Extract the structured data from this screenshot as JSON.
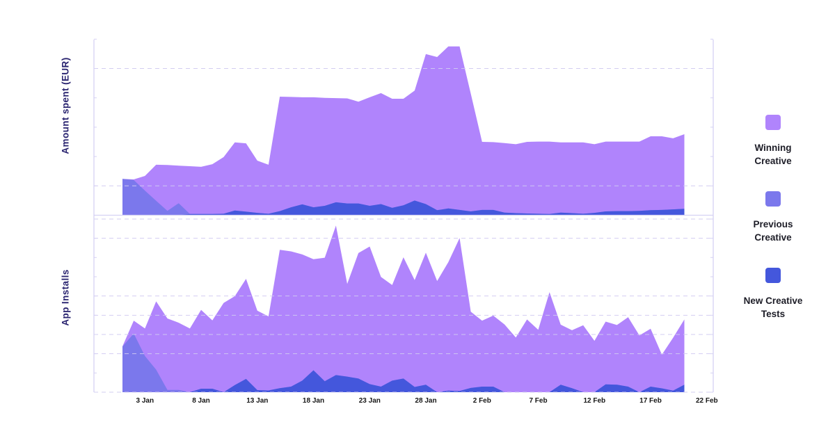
{
  "chart_data": [
    {
      "type": "area",
      "stacked": true,
      "title": "",
      "xlabel": "",
      "ylabel": "Amount spent (EUR)",
      "ylim": [
        0,
        600
      ],
      "ytick_step": 100,
      "ytick_labels_shown": false,
      "dashed_gridlines": [
        100,
        500
      ],
      "x": [
        "1 Jan",
        "2 Jan",
        "3 Jan",
        "4 Jan",
        "5 Jan",
        "6 Jan",
        "7 Jan",
        "8 Jan",
        "9 Jan",
        "10 Jan",
        "11 Jan",
        "12 Jan",
        "13 Jan",
        "14 Jan",
        "15 Jan",
        "16 Jan",
        "17 Jan",
        "18 Jan",
        "19 Jan",
        "20 Jan",
        "21 Jan",
        "22 Jan",
        "23 Jan",
        "24 Jan",
        "25 Jan",
        "26 Jan",
        "27 Jan",
        "28 Jan",
        "29 Jan",
        "30 Jan",
        "31 Jan",
        "1 Feb",
        "2 Feb",
        "3 Feb",
        "4 Feb",
        "5 Feb",
        "6 Feb",
        "7 Feb",
        "8 Feb",
        "9 Feb",
        "10 Feb",
        "11 Feb",
        "12 Feb",
        "13 Feb",
        "14 Feb",
        "15 Feb",
        "16 Feb",
        "17 Feb",
        "18 Feb",
        "19 Feb",
        "20 Feb"
      ],
      "series": [
        {
          "name": "New Creative Tests",
          "color": "#4457DC",
          "values": [
            0,
            0,
            0,
            0,
            0,
            0,
            4,
            4,
            4,
            5,
            16,
            12,
            8,
            5,
            14,
            27,
            37,
            27,
            32,
            44,
            40,
            40,
            32,
            38,
            25,
            34,
            50,
            38,
            17,
            23,
            18,
            13,
            18,
            18,
            9,
            7,
            6,
            5,
            4,
            9,
            7,
            5,
            8,
            13,
            14,
            14,
            15,
            17,
            18,
            20,
            22
          ]
        },
        {
          "name": "Previous Creative",
          "color": "#7B78EC",
          "values": [
            124,
            120,
            84,
            49,
            15,
            41,
            0,
            0,
            0,
            0,
            0,
            0,
            0,
            0,
            0,
            0,
            0,
            0,
            0,
            0,
            0,
            0,
            0,
            0,
            0,
            0,
            0,
            0,
            0,
            0,
            0,
            0,
            0,
            0,
            0,
            0,
            0,
            0,
            0,
            0,
            0,
            0,
            0,
            0,
            0,
            0,
            0,
            0,
            0,
            0,
            0
          ]
        },
        {
          "name": "Winning Creative",
          "color": "#B084FC",
          "values": [
            0,
            2,
            50,
            123,
            156,
            128,
            163,
            161,
            170,
            193,
            232,
            233,
            178,
            167,
            390,
            376,
            365,
            375,
            368,
            355,
            358,
            347,
            370,
            378,
            372,
            363,
            375,
            511,
            522,
            552,
            557,
            401,
            232,
            231,
            237,
            235,
            244,
            246,
            247,
            239,
            241,
            243,
            234,
            238,
            237,
            237,
            236,
            252,
            251,
            242,
            254
          ]
        }
      ]
    },
    {
      "type": "area",
      "stacked": true,
      "title": "",
      "xlabel": "",
      "ylabel": "App Installs",
      "ylim": [
        0,
        900
      ],
      "ytick_step": 100,
      "ytick_labels_shown": false,
      "dashed_gridlines": [
        0,
        200,
        300,
        400,
        500,
        800,
        900
      ],
      "xtick_labels": [
        "3 Jan",
        "8 Jan",
        "13 Jan",
        "18 Jan",
        "23 Jan",
        "28 Jan",
        "2 Feb",
        "7 Feb",
        "12 Feb",
        "17 Feb",
        "22 Feb"
      ],
      "x": [
        "1 Jan",
        "2 Jan",
        "3 Jan",
        "4 Jan",
        "5 Jan",
        "6 Jan",
        "7 Jan",
        "8 Jan",
        "9 Jan",
        "10 Jan",
        "11 Jan",
        "12 Jan",
        "13 Jan",
        "14 Jan",
        "15 Jan",
        "16 Jan",
        "17 Jan",
        "18 Jan",
        "19 Jan",
        "20 Jan",
        "21 Jan",
        "22 Jan",
        "23 Jan",
        "24 Jan",
        "25 Jan",
        "26 Jan",
        "27 Jan",
        "28 Jan",
        "29 Jan",
        "30 Jan",
        "31 Jan",
        "1 Feb",
        "2 Feb",
        "3 Feb",
        "4 Feb",
        "5 Feb",
        "6 Feb",
        "7 Feb",
        "8 Feb",
        "9 Feb",
        "10 Feb",
        "11 Feb",
        "12 Feb",
        "13 Feb",
        "14 Feb",
        "15 Feb",
        "16 Feb",
        "17 Feb",
        "18 Feb",
        "19 Feb",
        "20 Feb"
      ],
      "series": [
        {
          "name": "New Creative Tests",
          "color": "#4457DC",
          "values": [
            0,
            0,
            0,
            0,
            0,
            0,
            0,
            18,
            18,
            0,
            37,
            69,
            11,
            9,
            21,
            29,
            60,
            114,
            57,
            89,
            81,
            71,
            42,
            29,
            60,
            71,
            27,
            39,
            0,
            8,
            6,
            22,
            29,
            29,
            0,
            0,
            0,
            0,
            0,
            39,
            21,
            0,
            0,
            41,
            39,
            29,
            0,
            29,
            20,
            8,
            39
          ]
        },
        {
          "name": "Previous Creative",
          "color": "#7B78EC",
          "values": [
            237,
            305,
            188,
            117,
            12,
            12,
            0,
            0,
            0,
            0,
            0,
            0,
            0,
            0,
            0,
            0,
            0,
            0,
            0,
            0,
            0,
            0,
            0,
            0,
            0,
            0,
            0,
            0,
            0,
            0,
            0,
            0,
            0,
            0,
            0,
            0,
            0,
            0,
            0,
            0,
            0,
            0,
            0,
            0,
            0,
            0,
            0,
            0,
            0,
            0,
            0
          ]
        },
        {
          "name": "Winning Creative",
          "color": "#B084FC",
          "values": [
            1,
            67,
            143,
            355,
            371,
            349,
            331,
            410,
            355,
            464,
            462,
            520,
            413,
            385,
            719,
            703,
            656,
            577,
            642,
            777,
            482,
            652,
            715,
            570,
            497,
            630,
            556,
            686,
            578,
            668,
            795,
            396,
            343,
            369,
            352,
            284,
            378,
            324,
            520,
            312,
            301,
            348,
            267,
            326,
            310,
            361,
            295,
            301,
            175,
            275,
            339
          ]
        }
      ]
    }
  ],
  "legend": {
    "position": "right",
    "items": [
      {
        "label_lines": [
          "Winning",
          "Creative"
        ],
        "color": "#B084FC"
      },
      {
        "label_lines": [
          "Previous",
          "Creative"
        ],
        "color": "#7B78EC"
      },
      {
        "label_lines": [
          "New Creative",
          "Tests"
        ],
        "color": "#4457DC"
      }
    ]
  }
}
